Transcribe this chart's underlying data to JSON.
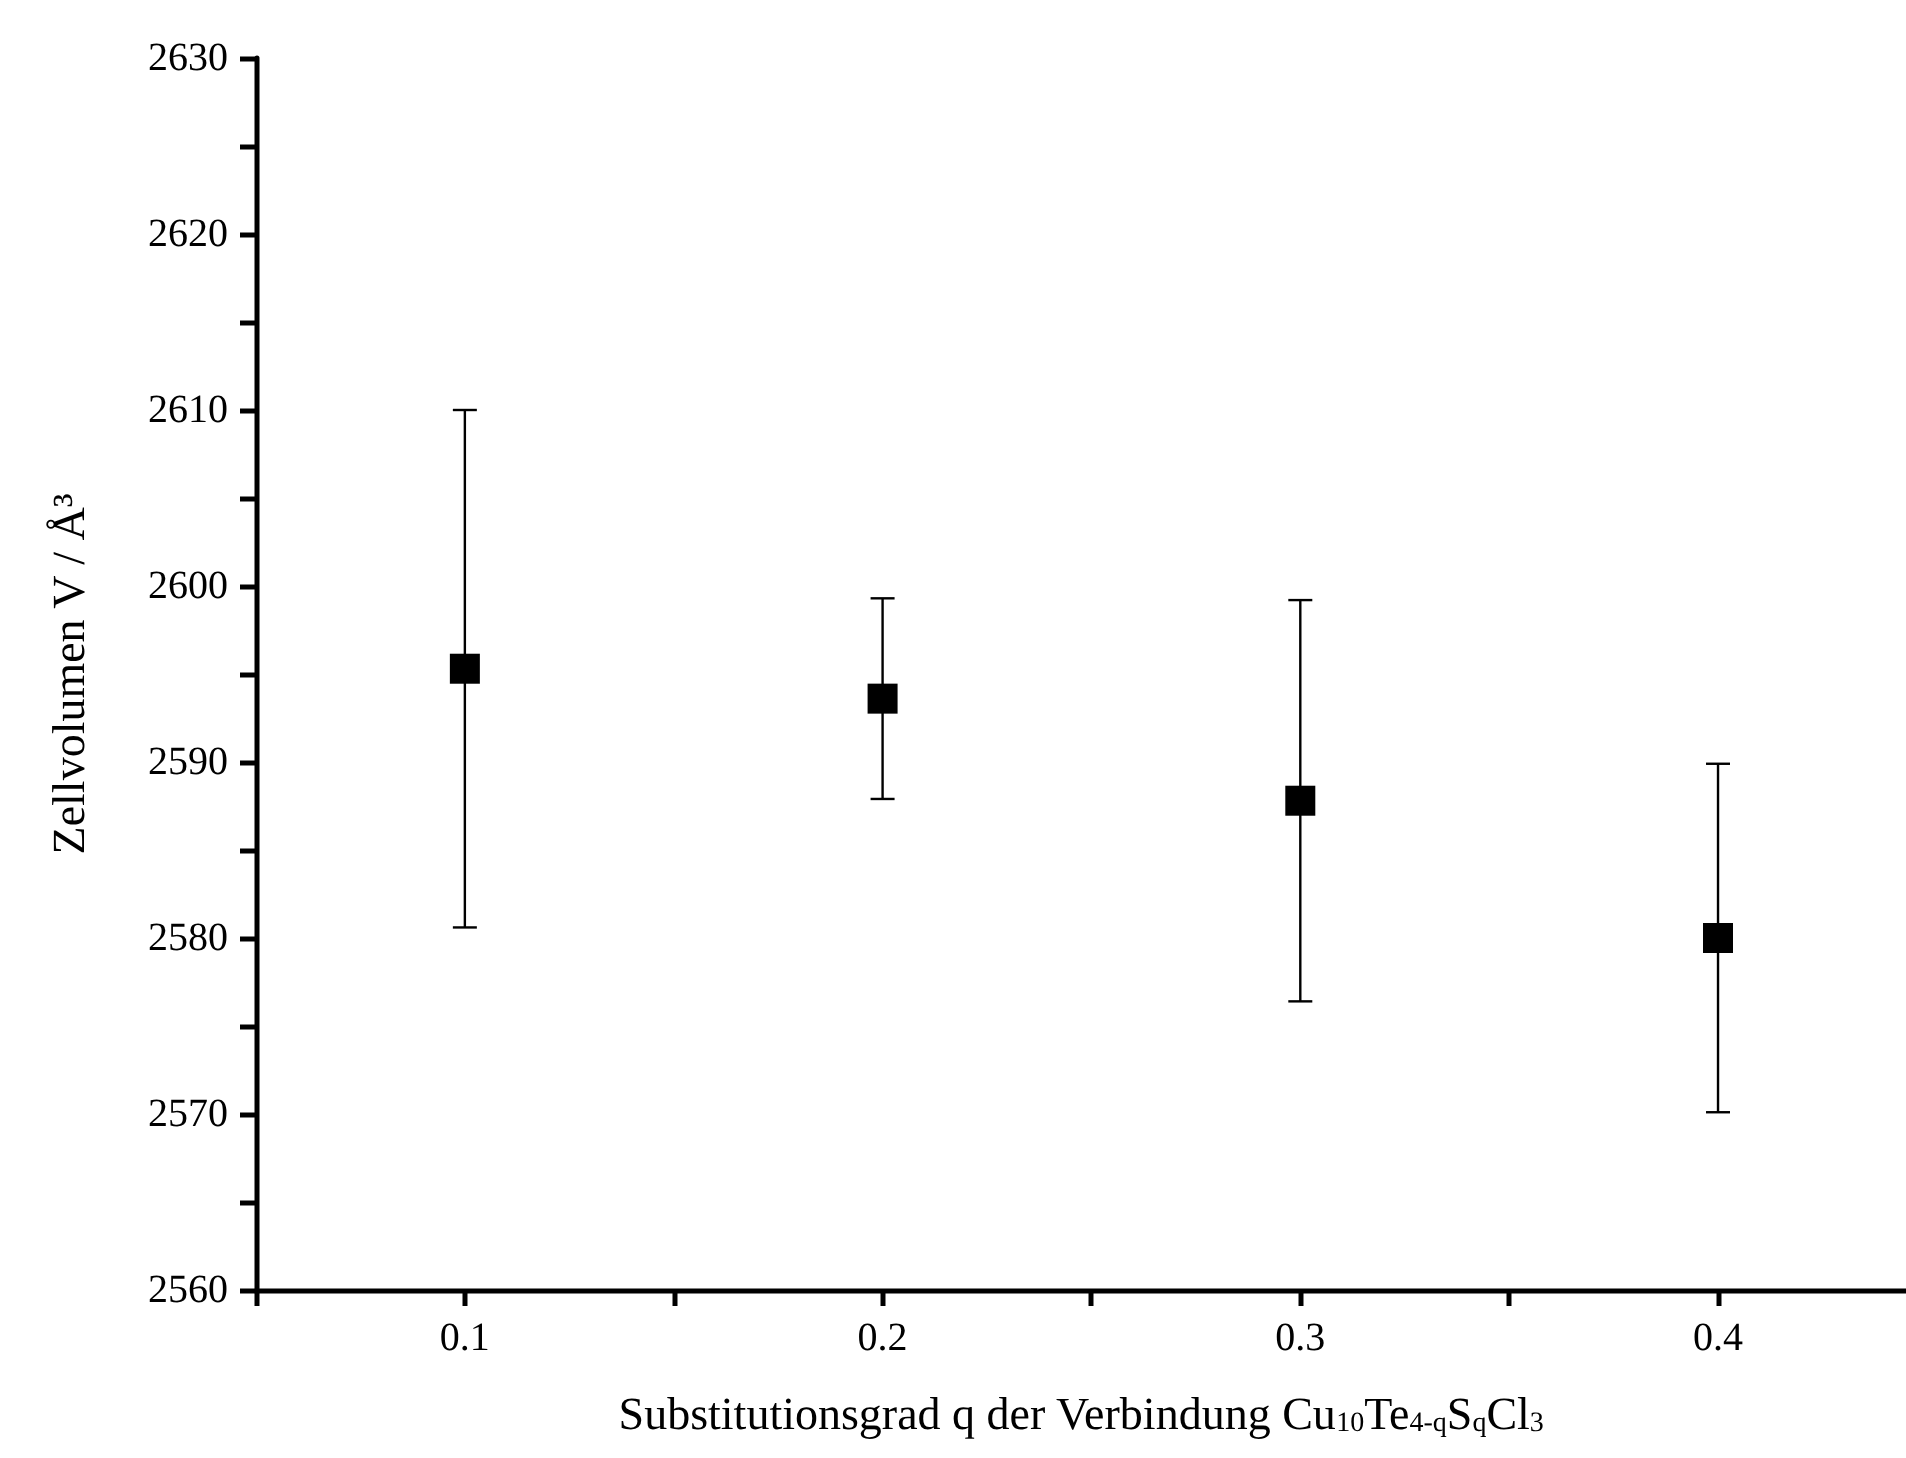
{
  "chart_data": {
    "type": "scatter",
    "xlabel": "Substitutionsgrad q der Verbindung Cu$_{10}$Te$_{4-q}$S$_{q}$Cl$_{3}$",
    "ylabel": "Zellvolumen V / Å³",
    "x": [
      0.1,
      0.2,
      0.3,
      0.4
    ],
    "series": [
      {
        "color": "#000000",
        "values": [
          2595.3,
          2593.6,
          2587.8,
          2580.0
        ],
        "errors": [
          [
            2580.6,
            2610.0
          ],
          [
            2587.9,
            2599.3
          ],
          [
            2576.4,
            2599.2
          ],
          [
            2570.1,
            2589.9
          ]
        ]
      }
    ],
    "xlim": [
      0.05,
      0.445
    ],
    "xticks": [
      {
        "value": 0.05,
        "label": null
      },
      0.1,
      {
        "value": 0.15,
        "label": null
      },
      0.2,
      {
        "value": 0.25,
        "label": null
      },
      0.3,
      {
        "value": 0.35,
        "label": null
      },
      0.4
    ],
    "ylim": [
      2560,
      2630
    ],
    "yticks": [
      2560,
      {
        "value": 2565,
        "label": null
      },
      2570,
      {
        "value": 2575,
        "label": null
      },
      2580,
      {
        "value": 2585,
        "label": null
      },
      2590,
      {
        "value": 2595,
        "label": null
      },
      2600,
      {
        "value": 2605,
        "label": null
      },
      2610,
      {
        "value": 2615,
        "label": null
      },
      2620,
      {
        "value": 2625,
        "label": null
      },
      2630
    ],
    "marker": "square",
    "grid": false
  }
}
